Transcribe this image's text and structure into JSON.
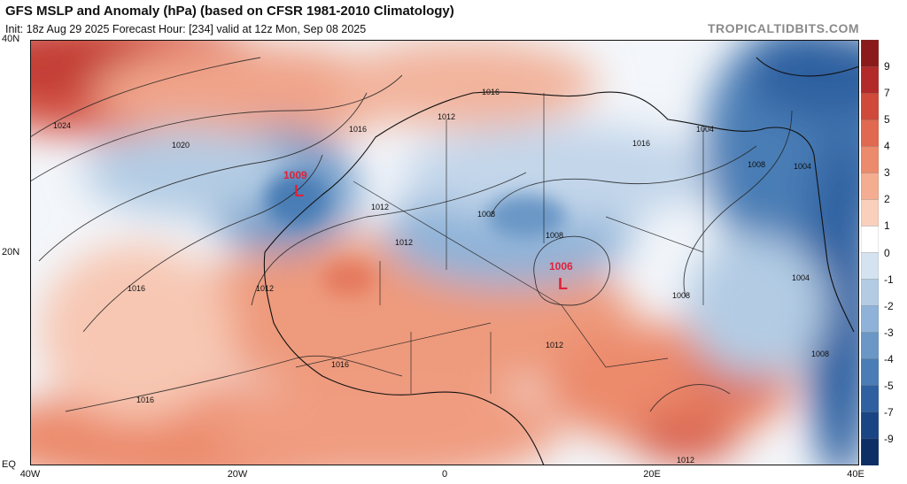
{
  "header": {
    "title": "GFS MSLP and Anomaly (hPa) (based on CFSR 1981-2010 Climatology)",
    "subtitle": "Init: 18z Aug 29 2025   Forecast Hour: [234]   valid at 12z Mon, Sep 08 2025",
    "brand": "TROPICALTIDBITS.COM"
  },
  "axes": {
    "lat_labels": [
      "40N",
      "20N",
      "EQ"
    ],
    "lon_labels": [
      "40W",
      "20W",
      "0",
      "20E",
      "40E"
    ]
  },
  "colorbar": {
    "labels": [
      "9",
      "7",
      "5",
      "4",
      "3",
      "2",
      "1",
      "0",
      "-1",
      "-2",
      "-3",
      "-4",
      "-5",
      "-7",
      "-9"
    ],
    "colors": [
      "#8b1a1a",
      "#b22a2a",
      "#cf4a3a",
      "#e0694f",
      "#ec8a6c",
      "#f4ad90",
      "#f9d0bc",
      "#ffffff",
      "#d5e3f1",
      "#b3cce4",
      "#8fb3d8",
      "#6a97c6",
      "#4a7db5",
      "#2f60a0",
      "#1a4585",
      "#0d2f66"
    ]
  },
  "pressure_lows": [
    {
      "value": "1009",
      "symbol": "L"
    },
    {
      "value": "1006",
      "symbol": "L"
    }
  ],
  "isobar_labels": [
    "1024",
    "1020",
    "1016",
    "1016",
    "1016",
    "1016",
    "1016",
    "1016",
    "1012",
    "1012",
    "1012",
    "1012",
    "1012",
    "1012",
    "1008",
    "1008",
    "1008",
    "1008",
    "1008",
    "1004",
    "1004",
    "1004"
  ]
}
